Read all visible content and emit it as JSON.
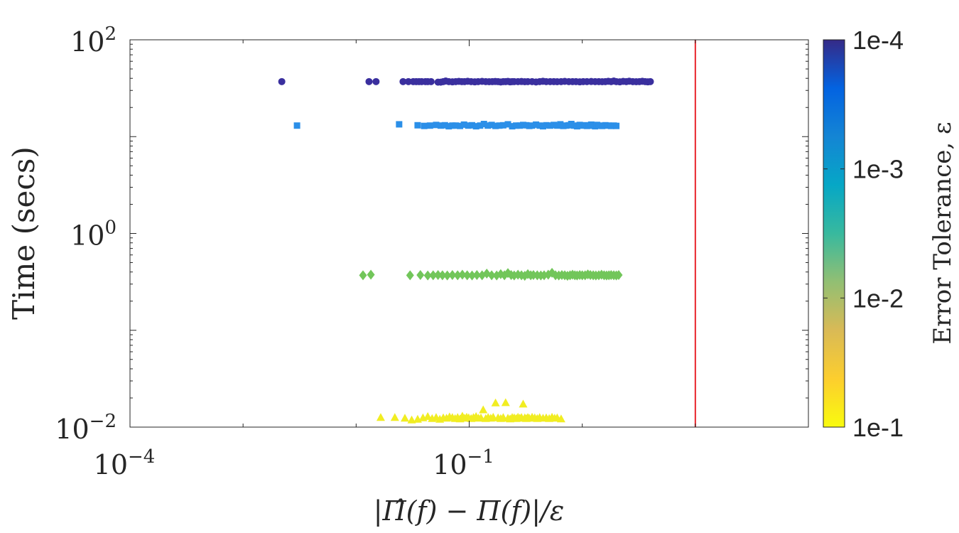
{
  "chart_data": {
    "type": "scatter",
    "x_scale": "log",
    "y_scale": "log",
    "xlim": [
      0.0001,
      100
    ],
    "ylim": [
      0.01,
      100
    ],
    "x_ticks": [
      {
        "value": 0.0001,
        "base": "10",
        "exp": "−4"
      },
      {
        "value": 0.1,
        "base": "10",
        "exp": "−1"
      }
    ],
    "y_ticks": [
      {
        "value": 0.01,
        "base": "10",
        "exp": "−2"
      },
      {
        "value": 1,
        "base": "10",
        "exp": "0"
      },
      {
        "value": 100,
        "base": "10",
        "exp": "2"
      }
    ],
    "xlabel": "|Π̂(f) − Π(f)|/ε",
    "ylabel": "Time (secs)",
    "threshold_line": {
      "x": 10,
      "color": "#e8242b"
    },
    "colorbar": {
      "label": "Error Tolerance, ε",
      "ticks": [
        "1e-4",
        "1e-3",
        "1e-2",
        "1e-1"
      ],
      "scale": "log",
      "colors": [
        "#352a87",
        "#0363e1",
        "#1485d4",
        "#06a7c6",
        "#38b99e",
        "#92bf73",
        "#d9ba56",
        "#fcce2e",
        "#f9fb0e"
      ]
    },
    "series": [
      {
        "tolerance": "1e-4",
        "marker": "circle",
        "color": "#3a2f9e",
        "x": [
          0.0022,
          0.013,
          0.015,
          0.026,
          0.029,
          0.032,
          0.034,
          0.036,
          0.038,
          0.041,
          0.043,
          0.046,
          0.053,
          0.056,
          0.059,
          0.062,
          0.066,
          0.071,
          0.076,
          0.081,
          0.086,
          0.091,
          0.097,
          0.104,
          0.112,
          0.12,
          0.13,
          0.14,
          0.15,
          0.16,
          0.17,
          0.18,
          0.19,
          0.2,
          0.21,
          0.22,
          0.23,
          0.24,
          0.25,
          0.27,
          0.29,
          0.31,
          0.33,
          0.36,
          0.39,
          0.42,
          0.45,
          0.48,
          0.52,
          0.56,
          0.6,
          0.65,
          0.7,
          0.76,
          0.82,
          0.88,
          0.95,
          1.02,
          1.1,
          1.2,
          1.3,
          1.4,
          1.5,
          1.6,
          1.7,
          1.8,
          1.9,
          2.0,
          2.15,
          2.3,
          2.45,
          2.6,
          2.8,
          3.0,
          3.2,
          3.4,
          3.6,
          3.8,
          4.0
        ],
        "y": [
          37,
          37,
          37,
          37,
          37,
          37,
          37,
          37,
          37,
          37,
          37,
          37,
          36.5,
          36.5,
          37,
          37.5,
          37,
          36.8,
          37,
          37.2,
          37,
          37,
          37.3,
          37,
          36.8,
          37,
          37.2,
          37,
          36.9,
          37,
          37.1,
          37,
          36.7,
          37,
          37,
          37.2,
          36.8,
          37,
          37,
          37,
          37.1,
          36.9,
          37,
          37,
          36.7,
          37,
          37.3,
          37,
          37,
          37,
          36.9,
          37,
          37.2,
          37,
          37,
          37,
          36.8,
          37,
          37,
          37.1,
          37,
          37,
          36.9,
          37,
          37.3,
          37,
          37.5,
          37,
          36.8,
          37.2,
          37,
          37.4,
          37,
          36.9,
          37,
          37.3,
          37,
          36.8,
          37
        ]
      },
      {
        "tolerance": "1e-3",
        "marker": "square",
        "color": "#2b8fe8",
        "x": [
          0.003,
          0.024,
          0.035,
          0.04,
          0.045,
          0.051,
          0.056,
          0.061,
          0.066,
          0.071,
          0.076,
          0.083,
          0.09,
          0.098,
          0.106,
          0.115,
          0.125,
          0.135,
          0.146,
          0.158,
          0.171,
          0.185,
          0.2,
          0.22,
          0.24,
          0.26,
          0.28,
          0.3,
          0.32,
          0.34,
          0.36,
          0.39,
          0.42,
          0.45,
          0.48,
          0.52,
          0.56,
          0.6,
          0.64,
          0.68,
          0.72,
          0.76,
          0.8,
          0.85,
          0.9,
          0.95,
          1.0,
          1.05,
          1.1,
          1.15,
          1.2,
          1.25,
          1.3,
          1.35,
          1.4,
          1.5,
          1.6,
          1.7,
          1.8,
          1.9,
          2.0
        ],
        "y": [
          13.0,
          13.4,
          13.1,
          12.9,
          13.0,
          13.2,
          13.0,
          13.1,
          12.8,
          13.0,
          13.0,
          12.9,
          13.3,
          13.0,
          13.1,
          12.8,
          13.0,
          13.5,
          13.0,
          13.2,
          12.9,
          13.0,
          13.1,
          13.4,
          12.8,
          13.0,
          13.0,
          13.2,
          13.1,
          12.9,
          13.0,
          13.3,
          13.0,
          12.8,
          13.1,
          13.0,
          13.2,
          13.0,
          13.4,
          12.9,
          13.0,
          13.1,
          13.5,
          13.0,
          12.8,
          13.2,
          13.0,
          13.1,
          12.9,
          13.0,
          13.3,
          13.0,
          12.8,
          13.2,
          13.0,
          12.9,
          13.1,
          13.0,
          12.9,
          13.0,
          12.9
        ]
      },
      {
        "tolerance": "1e-2",
        "marker": "diamond",
        "color": "#72c65a",
        "x": [
          0.0115,
          0.0135,
          0.03,
          0.037,
          0.043,
          0.048,
          0.053,
          0.058,
          0.064,
          0.071,
          0.079,
          0.087,
          0.096,
          0.106,
          0.117,
          0.13,
          0.143,
          0.158,
          0.175,
          0.19,
          0.205,
          0.22,
          0.235,
          0.25,
          0.27,
          0.29,
          0.31,
          0.33,
          0.35,
          0.37,
          0.4,
          0.43,
          0.46,
          0.5,
          0.54,
          0.58,
          0.62,
          0.66,
          0.7,
          0.74,
          0.78,
          0.82,
          0.86,
          0.9,
          0.95,
          1.0,
          1.06,
          1.12,
          1.18,
          1.25,
          1.32,
          1.4,
          1.48,
          1.56,
          1.64,
          1.72,
          1.8,
          1.9,
          2.0,
          2.1
        ],
        "y": [
          0.37,
          0.375,
          0.37,
          0.372,
          0.368,
          0.37,
          0.372,
          0.37,
          0.368,
          0.372,
          0.37,
          0.375,
          0.37,
          0.368,
          0.372,
          0.37,
          0.385,
          0.37,
          0.368,
          0.38,
          0.37,
          0.39,
          0.372,
          0.368,
          0.375,
          0.37,
          0.365,
          0.38,
          0.37,
          0.372,
          0.37,
          0.368,
          0.37,
          0.375,
          0.392,
          0.37,
          0.368,
          0.372,
          0.37,
          0.365,
          0.37,
          0.375,
          0.37,
          0.368,
          0.372,
          0.37,
          0.37,
          0.378,
          0.372,
          0.37,
          0.368,
          0.37,
          0.375,
          0.37,
          0.368,
          0.37,
          0.372,
          0.37,
          0.368,
          0.372
        ]
      },
      {
        "tolerance": "1e-1",
        "marker": "triangle",
        "color": "#f1ed22",
        "x": [
          0.0165,
          0.022,
          0.027,
          0.031,
          0.035,
          0.039,
          0.043,
          0.047,
          0.051,
          0.055,
          0.059,
          0.063,
          0.067,
          0.071,
          0.075,
          0.079,
          0.083,
          0.087,
          0.091,
          0.095,
          0.099,
          0.104,
          0.109,
          0.115,
          0.121,
          0.127,
          0.133,
          0.14,
          0.147,
          0.155,
          0.163,
          0.171,
          0.18,
          0.19,
          0.2,
          0.21,
          0.22,
          0.23,
          0.24,
          0.25,
          0.26,
          0.27,
          0.28,
          0.29,
          0.3,
          0.31,
          0.32,
          0.33,
          0.34,
          0.36,
          0.38,
          0.4,
          0.42,
          0.45,
          0.48,
          0.51,
          0.54,
          0.57,
          0.6,
          0.65
        ],
        "y": [
          0.0125,
          0.0125,
          0.0123,
          0.0118,
          0.012,
          0.0124,
          0.0128,
          0.0122,
          0.0125,
          0.012,
          0.0124,
          0.0123,
          0.0127,
          0.0125,
          0.0122,
          0.0125,
          0.0121,
          0.0129,
          0.0123,
          0.0126,
          0.0124,
          0.0122,
          0.0125,
          0.0128,
          0.0123,
          0.0124,
          0.015,
          0.0122,
          0.0125,
          0.0123,
          0.0126,
          0.0177,
          0.0124,
          0.0122,
          0.0125,
          0.0178,
          0.0123,
          0.0121,
          0.0125,
          0.0124,
          0.0122,
          0.0126,
          0.0123,
          0.0125,
          0.0172,
          0.0124,
          0.0122,
          0.0125,
          0.0123,
          0.0126,
          0.0124,
          0.0122,
          0.0125,
          0.0123,
          0.0124,
          0.0122,
          0.0126,
          0.0123,
          0.0124,
          0.0121
        ]
      }
    ]
  }
}
